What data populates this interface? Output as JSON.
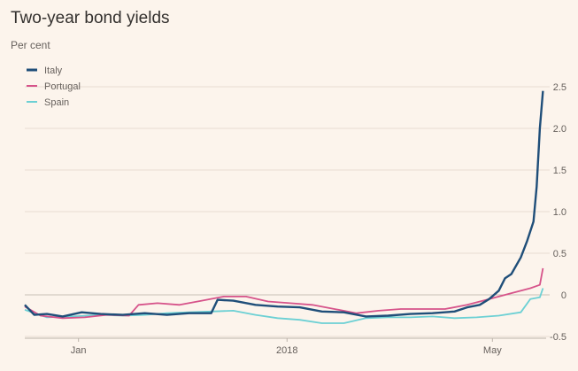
{
  "chart_data": {
    "type": "line",
    "title": "Two-year bond yields",
    "ylabel": "Per cent",
    "xlabel": "",
    "ylim": [
      -0.5,
      2.5
    ],
    "yticks": [
      2.5,
      2.0,
      1.5,
      1.0,
      0.5,
      0,
      -0.5
    ],
    "ytick_labels": [
      "2.5",
      "2.0",
      "1.5",
      "1.0",
      "0.5",
      "0",
      "-0.5"
    ],
    "xlim": [
      "2017-12-15",
      "2018-05-29"
    ],
    "xtick_labels": [
      {
        "label": "Jan",
        "x": "2018-01-01"
      },
      {
        "label": "2018",
        "x": "2018-03-08"
      },
      {
        "label": "May",
        "x": "2018-05-12"
      }
    ],
    "grid": true,
    "legend_position": "top-left",
    "series": [
      {
        "name": "Italy",
        "color": "#1f4e79",
        "points": [
          [
            "2017-12-15",
            -0.12
          ],
          [
            "2017-12-18",
            -0.24
          ],
          [
            "2017-12-22",
            -0.23
          ],
          [
            "2017-12-27",
            -0.26
          ],
          [
            "2018-01-02",
            -0.21
          ],
          [
            "2018-01-08",
            -0.23
          ],
          [
            "2018-01-15",
            -0.24
          ],
          [
            "2018-01-22",
            -0.22
          ],
          [
            "2018-01-29",
            -0.24
          ],
          [
            "2018-02-05",
            -0.22
          ],
          [
            "2018-02-12",
            -0.22
          ],
          [
            "2018-02-14",
            -0.06
          ],
          [
            "2018-02-19",
            -0.07
          ],
          [
            "2018-02-26",
            -0.12
          ],
          [
            "2018-03-05",
            -0.14
          ],
          [
            "2018-03-12",
            -0.15
          ],
          [
            "2018-03-19",
            -0.2
          ],
          [
            "2018-03-26",
            -0.21
          ],
          [
            "2018-04-02",
            -0.26
          ],
          [
            "2018-04-09",
            -0.25
          ],
          [
            "2018-04-16",
            -0.23
          ],
          [
            "2018-04-23",
            -0.22
          ],
          [
            "2018-04-30",
            -0.2
          ],
          [
            "2018-05-04",
            -0.15
          ],
          [
            "2018-05-08",
            -0.12
          ],
          [
            "2018-05-11",
            -0.05
          ],
          [
            "2018-05-14",
            0.05
          ],
          [
            "2018-05-16",
            0.2
          ],
          [
            "2018-05-18",
            0.25
          ],
          [
            "2018-05-21",
            0.45
          ],
          [
            "2018-05-23",
            0.65
          ],
          [
            "2018-05-25",
            0.88
          ],
          [
            "2018-05-26",
            1.3
          ],
          [
            "2018-05-27",
            2.0
          ],
          [
            "2018-05-28",
            2.45
          ]
        ]
      },
      {
        "name": "Portugal",
        "color": "#d6538a",
        "points": [
          [
            "2017-12-15",
            -0.14
          ],
          [
            "2017-12-20",
            -0.25
          ],
          [
            "2017-12-27",
            -0.28
          ],
          [
            "2018-01-03",
            -0.27
          ],
          [
            "2018-01-10",
            -0.24
          ],
          [
            "2018-01-17",
            -0.25
          ],
          [
            "2018-01-20",
            -0.12
          ],
          [
            "2018-01-26",
            -0.1
          ],
          [
            "2018-02-02",
            -0.12
          ],
          [
            "2018-02-09",
            -0.07
          ],
          [
            "2018-02-16",
            -0.02
          ],
          [
            "2018-02-23",
            -0.02
          ],
          [
            "2018-03-02",
            -0.08
          ],
          [
            "2018-03-09",
            -0.1
          ],
          [
            "2018-03-16",
            -0.12
          ],
          [
            "2018-03-23",
            -0.17
          ],
          [
            "2018-03-30",
            -0.22
          ],
          [
            "2018-04-06",
            -0.19
          ],
          [
            "2018-04-13",
            -0.17
          ],
          [
            "2018-04-20",
            -0.17
          ],
          [
            "2018-04-27",
            -0.17
          ],
          [
            "2018-05-04",
            -0.12
          ],
          [
            "2018-05-11",
            -0.05
          ],
          [
            "2018-05-18",
            0.02
          ],
          [
            "2018-05-24",
            0.08
          ],
          [
            "2018-05-27",
            0.12
          ],
          [
            "2018-05-28",
            0.32
          ]
        ]
      },
      {
        "name": "Spain",
        "color": "#6cd0d4",
        "points": [
          [
            "2017-12-15",
            -0.18
          ],
          [
            "2017-12-22",
            -0.27
          ],
          [
            "2017-12-30",
            -0.26
          ],
          [
            "2018-01-08",
            -0.24
          ],
          [
            "2018-01-15",
            -0.25
          ],
          [
            "2018-01-22",
            -0.24
          ],
          [
            "2018-01-29",
            -0.22
          ],
          [
            "2018-02-05",
            -0.21
          ],
          [
            "2018-02-12",
            -0.2
          ],
          [
            "2018-02-19",
            -0.19
          ],
          [
            "2018-02-26",
            -0.24
          ],
          [
            "2018-03-05",
            -0.28
          ],
          [
            "2018-03-12",
            -0.3
          ],
          [
            "2018-03-19",
            -0.34
          ],
          [
            "2018-03-26",
            -0.34
          ],
          [
            "2018-04-02",
            -0.28
          ],
          [
            "2018-04-09",
            -0.27
          ],
          [
            "2018-04-16",
            -0.27
          ],
          [
            "2018-04-23",
            -0.26
          ],
          [
            "2018-04-30",
            -0.28
          ],
          [
            "2018-05-07",
            -0.27
          ],
          [
            "2018-05-14",
            -0.25
          ],
          [
            "2018-05-21",
            -0.21
          ],
          [
            "2018-05-24",
            -0.05
          ],
          [
            "2018-05-27",
            -0.03
          ],
          [
            "2018-05-28",
            0.08
          ]
        ]
      }
    ]
  }
}
